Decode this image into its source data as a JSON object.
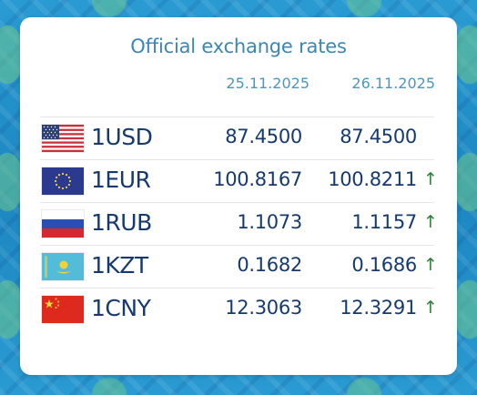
{
  "title": "Official exchange rates",
  "dates": [
    "25.11.2025",
    "26.11.2025"
  ],
  "rates": [
    {
      "code": "1USD",
      "flag": "us-flag",
      "rate_prev": "87.4500",
      "rate_curr": "87.4500",
      "trend": ""
    },
    {
      "code": "1EUR",
      "flag": "eu-flag",
      "rate_prev": "100.8167",
      "rate_curr": "100.8211",
      "trend": "↑"
    },
    {
      "code": "1RUB",
      "flag": "ru-flag",
      "rate_prev": "1.1073",
      "rate_curr": "1.1157",
      "trend": "↑"
    },
    {
      "code": "1KZT",
      "flag": "kz-flag",
      "rate_prev": "0.1682",
      "rate_curr": "0.1686",
      "trend": "↑"
    },
    {
      "code": "1CNY",
      "flag": "cn-flag",
      "rate_prev": "12.3063",
      "rate_curr": "12.3291",
      "trend": "↑"
    }
  ],
  "colors": {
    "title": "#3a87b6",
    "text": "#163a70",
    "trend_up": "#2e7d3a",
    "background": "#1f8fc6"
  }
}
